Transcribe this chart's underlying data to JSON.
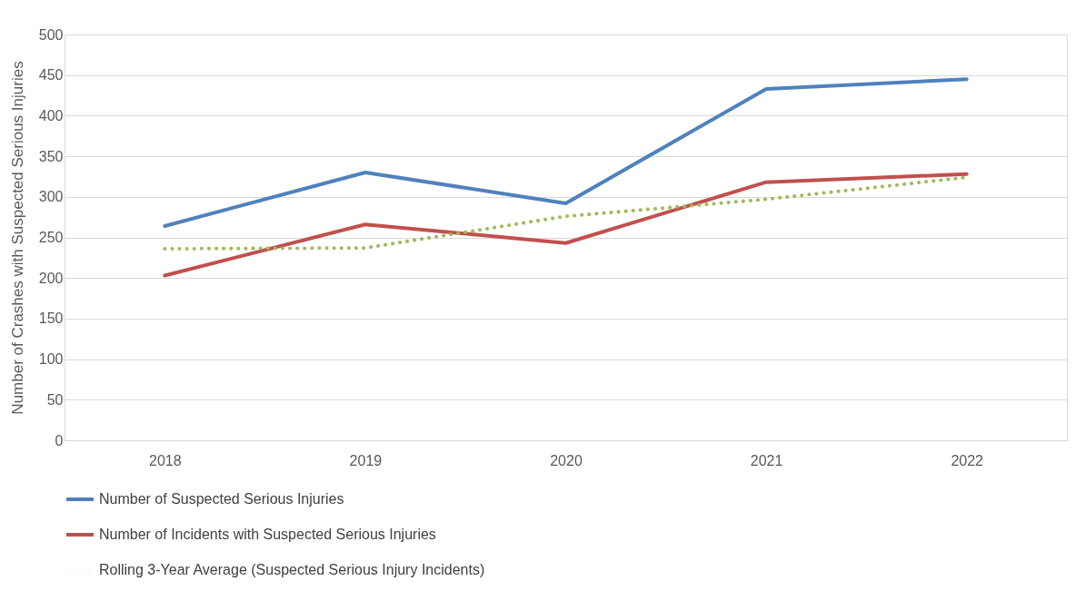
{
  "chart_data": {
    "type": "line",
    "ylabel": "Number of Crashes with Suspected Serious Injuries",
    "categories": [
      "2018",
      "2019",
      "2020",
      "2021",
      "2022"
    ],
    "series": [
      {
        "name": "Number of Suspected Serious Injuries",
        "color": "#4f81bd",
        "line_style": "solid",
        "values": [
          264,
          330,
          292,
          433,
          445
        ]
      },
      {
        "name": "Number of Incidents with Suspected Serious Injuries",
        "color": "#c0504d",
        "line_style": "solid",
        "values": [
          203,
          266,
          243,
          318,
          328
        ]
      },
      {
        "name": "Rolling 3-Year Average (Suspected Serious Injury Incidents)",
        "color": "#9bbb59",
        "line_style": "dotted",
        "values": [
          236,
          237,
          276,
          297,
          324
        ]
      }
    ],
    "ylim": [
      0,
      500
    ],
    "yticks": [
      0,
      50,
      100,
      150,
      200,
      250,
      300,
      350,
      400,
      450,
      500
    ],
    "grid": "y",
    "legend": "bottom",
    "marker": "none"
  }
}
